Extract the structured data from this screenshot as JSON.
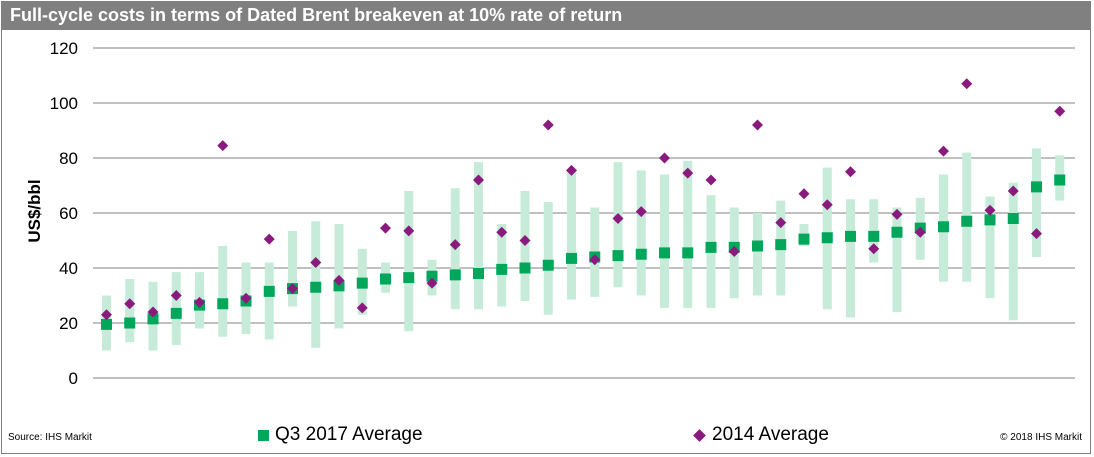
{
  "title": "Full-cycle costs in terms of Dated Brent breakeven at 10% rate of return",
  "source": "Source: IHS Markit",
  "copyright": "© 2018 IHS Markit",
  "colors": {
    "q3": "#00a65a",
    "y2014": "#8b1a7e",
    "range": "#c6ecd9",
    "grid": "#808080",
    "title_bg": "#808080"
  },
  "chart_data": {
    "type": "scatter",
    "title": "Full-cycle costs in terms of Dated Brent breakeven at 10% rate of return",
    "ylabel": "US$/bbl",
    "xlabel": "",
    "ylim": [
      0,
      120
    ],
    "yticks": [
      0,
      20,
      40,
      60,
      80,
      100,
      120
    ],
    "grid": true,
    "legend_position": "bottom",
    "series": [
      {
        "name": "Q3 2017 Average",
        "marker": "square",
        "values": [
          19.5,
          20,
          21.5,
          23.5,
          26.5,
          27,
          28,
          31.5,
          32.5,
          33,
          33.5,
          34.5,
          36,
          36.5,
          37,
          37.5,
          38,
          39.5,
          40,
          41,
          43.5,
          44,
          44.5,
          45,
          45.5,
          45.5,
          47.5,
          47.5,
          48,
          48.5,
          50.5,
          51,
          51.5,
          51.5,
          53,
          54.5,
          55,
          57,
          57.5,
          58,
          69.5,
          72
        ]
      },
      {
        "name": "2014 Average",
        "marker": "diamond",
        "values": [
          23,
          27,
          24,
          30,
          27.5,
          84.5,
          29,
          50.5,
          32.5,
          42,
          35.5,
          25.5,
          54.5,
          53.5,
          34.5,
          48.5,
          72,
          53,
          50,
          92,
          75.5,
          43,
          58,
          60.5,
          80,
          74.5,
          72,
          46,
          92,
          56.5,
          67,
          63,
          75,
          47,
          59.5,
          53,
          82.5,
          107,
          61,
          68,
          52.5,
          97
        ]
      }
    ],
    "ranges": [
      [
        10,
        30
      ],
      [
        13,
        36
      ],
      [
        10,
        35
      ],
      [
        12,
        38.5
      ],
      [
        18,
        38.5
      ],
      [
        15,
        48
      ],
      [
        16,
        42
      ],
      [
        14,
        42
      ],
      [
        26,
        53.5
      ],
      [
        11,
        57
      ],
      [
        18,
        56
      ],
      [
        23,
        47
      ],
      [
        31,
        42
      ],
      [
        17,
        68
      ],
      [
        30,
        43
      ],
      [
        25,
        69
      ],
      [
        25,
        78.5
      ],
      [
        26,
        56
      ],
      [
        28,
        68
      ],
      [
        23,
        64
      ],
      [
        28.5,
        75
      ],
      [
        29.5,
        62
      ],
      [
        33,
        78.5
      ],
      [
        30,
        75.5
      ],
      [
        25.5,
        74
      ],
      [
        25.5,
        79
      ],
      [
        25.5,
        66.5
      ],
      [
        29,
        62
      ],
      [
        30,
        60
      ],
      [
        30,
        64.5
      ],
      [
        48,
        56
      ],
      [
        25,
        76.5
      ],
      [
        22,
        65
      ],
      [
        42,
        65
      ],
      [
        24,
        62
      ],
      [
        43,
        65.5
      ],
      [
        35,
        74
      ],
      [
        35,
        82
      ],
      [
        29,
        66
      ],
      [
        21,
        71
      ],
      [
        44,
        83.5
      ],
      [
        64.5,
        81
      ]
    ]
  }
}
